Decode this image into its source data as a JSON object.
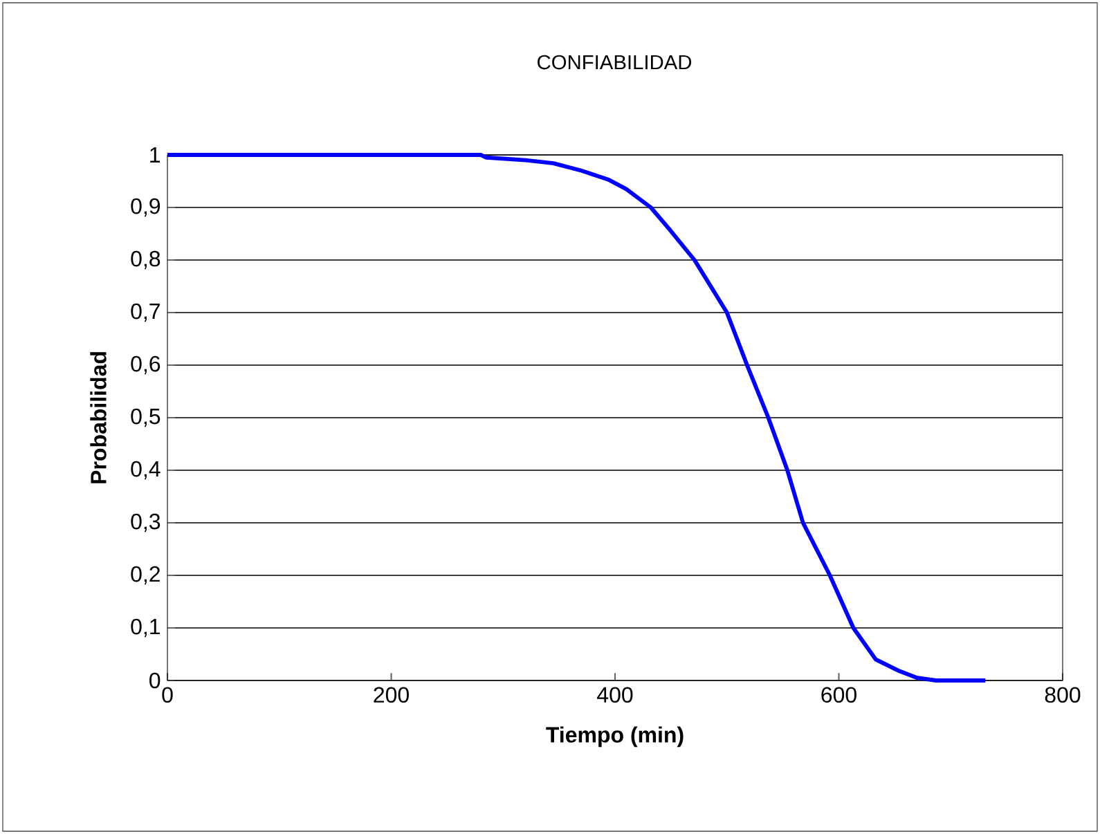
{
  "chart_data": {
    "type": "line",
    "title": "CONFIABILIDAD",
    "xlabel": "Tiempo (min)",
    "ylabel": "Probabilidad",
    "x": [
      0,
      280,
      285,
      320,
      345,
      370,
      394,
      410,
      432,
      448,
      471,
      500,
      518,
      537,
      554,
      568,
      592,
      613,
      633,
      654,
      670,
      687,
      731
    ],
    "series": [
      {
        "color": "#0000ff",
        "values": [
          1,
          1,
          0.995,
          0.99,
          0.984,
          0.97,
          0.953,
          0.935,
          0.9,
          0.86,
          0.8,
          0.7,
          0.6,
          0.5,
          0.4,
          0.3,
          0.2,
          0.1,
          0.04,
          0.018,
          0.005,
          0,
          0
        ]
      }
    ],
    "xlim": [
      0,
      800
    ],
    "ylim": [
      0,
      1
    ],
    "xticks": [
      0,
      200,
      400,
      600,
      800
    ],
    "yticks": [
      0,
      {
        "value": 0.1,
        "label": "0,1"
      },
      {
        "value": 0.2,
        "label": "0,2"
      },
      {
        "value": 0.3,
        "label": "0,3"
      },
      {
        "value": 0.4,
        "label": "0,4"
      },
      {
        "value": 0.5,
        "label": "0,5"
      },
      {
        "value": 0.6,
        "label": "0,6"
      },
      {
        "value": 0.7,
        "label": "0,7"
      },
      {
        "value": 0.8,
        "label": "0,8"
      },
      {
        "value": 0.9,
        "label": "0,9"
      },
      1
    ],
    "grid": "y",
    "legend": false,
    "marker": "none",
    "line_style": "solid"
  }
}
